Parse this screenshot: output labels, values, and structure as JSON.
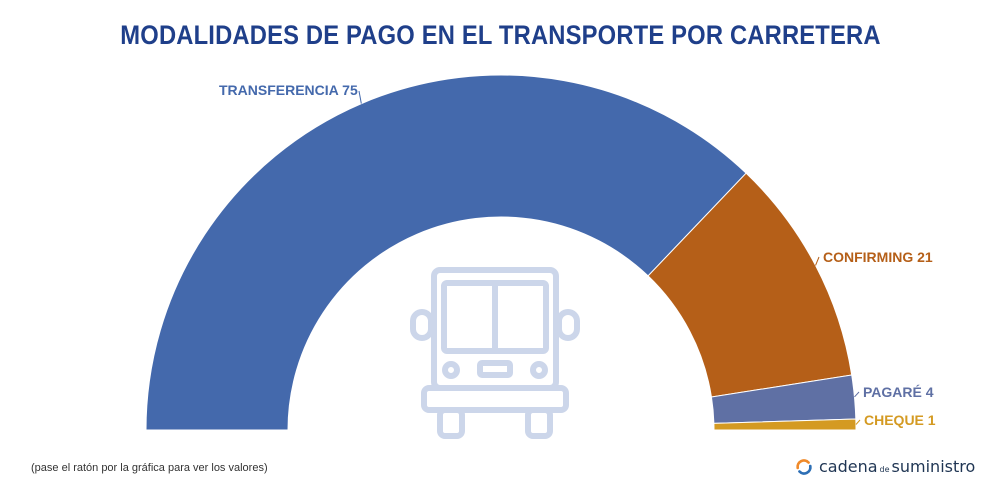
{
  "title": "MODALIDADES DE PAGO EN EL TRANSPORTE POR CARRETERA",
  "note": "(pase el ratón por la gráfica para ver los valores)",
  "brand": {
    "part1": "cadena",
    "part2": "de",
    "part3": "suministro"
  },
  "center_icon": "truck-front-icon",
  "chart_data": {
    "type": "pie",
    "variant": "semicircle-donut",
    "title": "MODALIDADES DE PAGO EN EL TRANSPORTE POR CARRETERA",
    "slices": [
      {
        "label": "TRANSFERENCIA",
        "value": 75,
        "color": "#4469ac",
        "label_color": "#4469ac"
      },
      {
        "label": "CONFIRMING",
        "value": 21,
        "color": "#b55f18",
        "label_color": "#b55f18"
      },
      {
        "label": "PAGARÉ",
        "value": 4,
        "color": "#5f70a4",
        "label_color": "#5f70a4"
      },
      {
        "label": "CHEQUE",
        "value": 1,
        "color": "#d49a22",
        "label_color": "#d49a22"
      }
    ]
  }
}
